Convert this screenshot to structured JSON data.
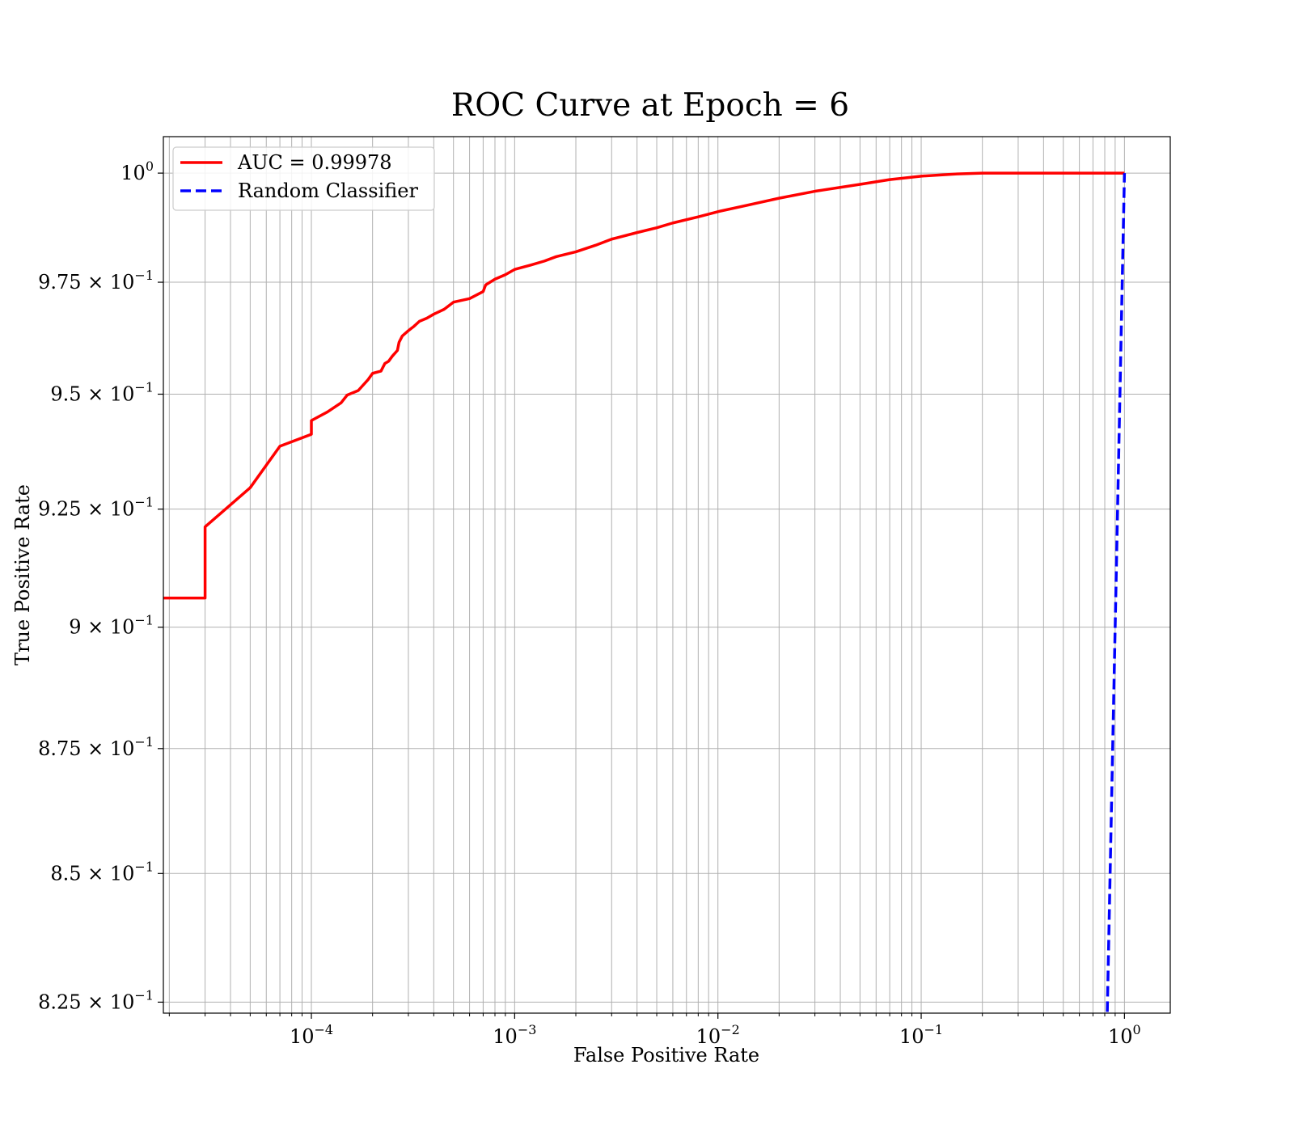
{
  "chart_data": {
    "type": "line",
    "title": "ROC Curve at Epoch = 6",
    "xlabel": "False Positive Rate",
    "ylabel": "True Positive Rate",
    "xscale": "log",
    "yscale": "log",
    "xlim": [
      1.87e-05,
      1.68
    ],
    "ylim": [
      0.8229,
      1.0085
    ],
    "grid": "major and minor",
    "legend_position": "top-left",
    "x_ticks": [
      {
        "mantissa": "10",
        "exponent": "−4",
        "value": 0.0001
      },
      {
        "mantissa": "10",
        "exponent": "−3",
        "value": 0.001
      },
      {
        "mantissa": "10",
        "exponent": "−2",
        "value": 0.01
      },
      {
        "mantissa": "10",
        "exponent": "−1",
        "value": 0.1
      },
      {
        "mantissa": "10",
        "exponent": "0",
        "value": 1
      }
    ],
    "y_ticks": [
      {
        "mantissa": "8.25 × 10",
        "exponent": "−1",
        "value": 0.825
      },
      {
        "mantissa": "8.5 × 10",
        "exponent": "−1",
        "value": 0.85
      },
      {
        "mantissa": "8.75 × 10",
        "exponent": "−1",
        "value": 0.875
      },
      {
        "mantissa": "9 × 10",
        "exponent": "−1",
        "value": 0.9
      },
      {
        "mantissa": "9.25 × 10",
        "exponent": "−1",
        "value": 0.925
      },
      {
        "mantissa": "9.5 × 10",
        "exponent": "−1",
        "value": 0.95
      },
      {
        "mantissa": "9.75 × 10",
        "exponent": "−1",
        "value": 0.975
      },
      {
        "mantissa": "10",
        "exponent": "0",
        "value": 1
      }
    ],
    "series": [
      {
        "name": "AUC = 0.99978",
        "color": "#ff0000",
        "style": "solid",
        "points": [
          [
            1.5e-05,
            0.9061
          ],
          [
            3e-05,
            0.9061
          ],
          [
            3e-05,
            0.9212
          ],
          [
            5e-05,
            0.9296
          ],
          [
            7e-05,
            0.9386
          ],
          [
            0.0001,
            0.9412
          ],
          [
            0.0001,
            0.9442
          ],
          [
            0.00012,
            0.9461
          ],
          [
            0.00014,
            0.9481
          ],
          [
            0.00015,
            0.9498
          ],
          [
            0.00017,
            0.9508
          ],
          [
            0.00019,
            0.9532
          ],
          [
            0.0002,
            0.9546
          ],
          [
            0.00022,
            0.9551
          ],
          [
            0.00023,
            0.9568
          ],
          [
            0.00024,
            0.9573
          ],
          [
            0.00025,
            0.9584
          ],
          [
            0.000265,
            0.9597
          ],
          [
            0.00027,
            0.9615
          ],
          [
            0.00028,
            0.9629
          ],
          [
            0.0003,
            0.9641
          ],
          [
            0.00032,
            0.9651
          ],
          [
            0.00034,
            0.9662
          ],
          [
            0.00037,
            0.9669
          ],
          [
            0.0004,
            0.9678
          ],
          [
            0.00045,
            0.9689
          ],
          [
            0.0005,
            0.9705
          ],
          [
            0.0006,
            0.9713
          ],
          [
            0.0007,
            0.9729
          ],
          [
            0.00072,
            0.9744
          ],
          [
            0.0008,
            0.9757
          ],
          [
            0.0009,
            0.9767
          ],
          [
            0.001,
            0.9779
          ],
          [
            0.0012,
            0.9789
          ],
          [
            0.0014,
            0.9798
          ],
          [
            0.0016,
            0.9808
          ],
          [
            0.002,
            0.9819
          ],
          [
            0.0025,
            0.9834
          ],
          [
            0.003,
            0.9848
          ],
          [
            0.004,
            0.9863
          ],
          [
            0.005,
            0.9874
          ],
          [
            0.006,
            0.9885
          ],
          [
            0.008,
            0.9899
          ],
          [
            0.01,
            0.9911
          ],
          [
            0.015,
            0.9929
          ],
          [
            0.02,
            0.9942
          ],
          [
            0.03,
            0.9958
          ],
          [
            0.05,
            0.9974
          ],
          [
            0.07,
            0.9985
          ],
          [
            0.1,
            0.9993
          ],
          [
            0.15,
            0.9998
          ],
          [
            0.2,
            1.0
          ],
          [
            0.5,
            1.0
          ],
          [
            1.0,
            1.0
          ]
        ]
      },
      {
        "name": "Random Classifier",
        "color": "#0000ff",
        "style": "dashed",
        "points": [
          [
            0.8,
            0.8
          ],
          [
            1.0,
            1.0
          ]
        ]
      }
    ]
  }
}
